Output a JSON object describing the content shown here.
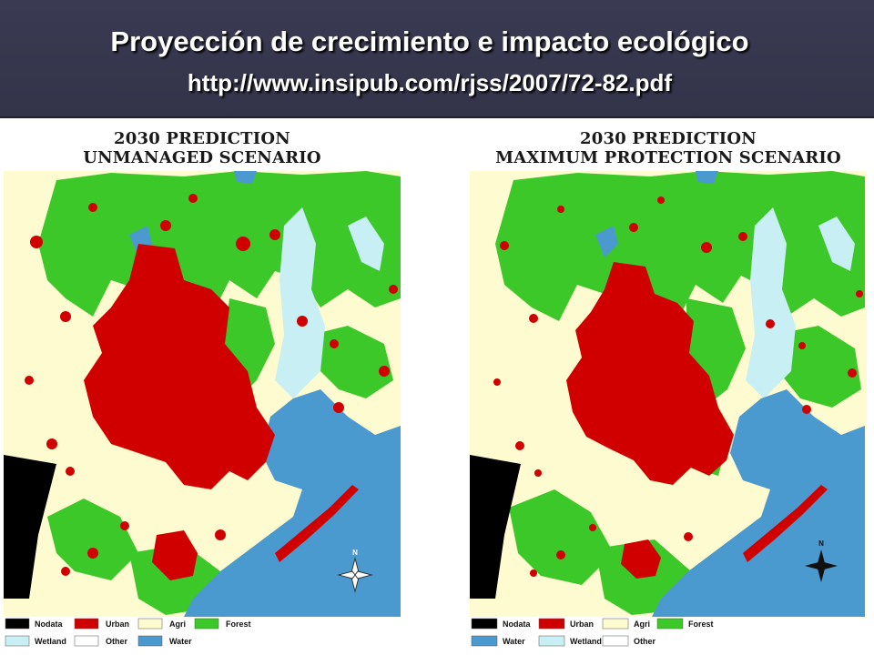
{
  "slide": {
    "title": "Proyección de crecimiento e impacto ecológico",
    "subtitle": "http://www.insipub.com/rjss/2007/72-82.pdf"
  },
  "colors": {
    "header_bg": "#35354c",
    "nodata": "#000000",
    "urban": "#d00000",
    "agri": "#fffbd0",
    "forest": "#3cc828",
    "wetland": "#c8f0f4",
    "other": "#ffffff",
    "water": "#4a9ad0"
  },
  "maps": [
    {
      "title_line1": "2030 PREDICTION",
      "title_line2": "UNMANAGED SCENARIO",
      "legend": [
        {
          "key": "nodata",
          "label": "Nodata"
        },
        {
          "key": "urban",
          "label": "Urban"
        },
        {
          "key": "agri",
          "label": "Agri"
        },
        {
          "key": "forest",
          "label": "Forest"
        },
        {
          "key": "wetland",
          "label": "Wetland"
        },
        {
          "key": "other",
          "label": "Other"
        },
        {
          "key": "water",
          "label": "Water"
        }
      ],
      "north_label": "N"
    },
    {
      "title_line1": "2030 PREDICTION",
      "title_line2": "MAXIMUM PROTECTION SCENARIO",
      "legend": [
        {
          "key": "nodata",
          "label": "Nodata"
        },
        {
          "key": "urban",
          "label": "Urban"
        },
        {
          "key": "agri",
          "label": "Agri"
        },
        {
          "key": "forest",
          "label": "Forest"
        },
        {
          "key": "water",
          "label": "Water"
        },
        {
          "key": "wetland",
          "label": "Wetland"
        },
        {
          "key": "other",
          "label": "Other"
        }
      ],
      "north_label": "N"
    }
  ]
}
